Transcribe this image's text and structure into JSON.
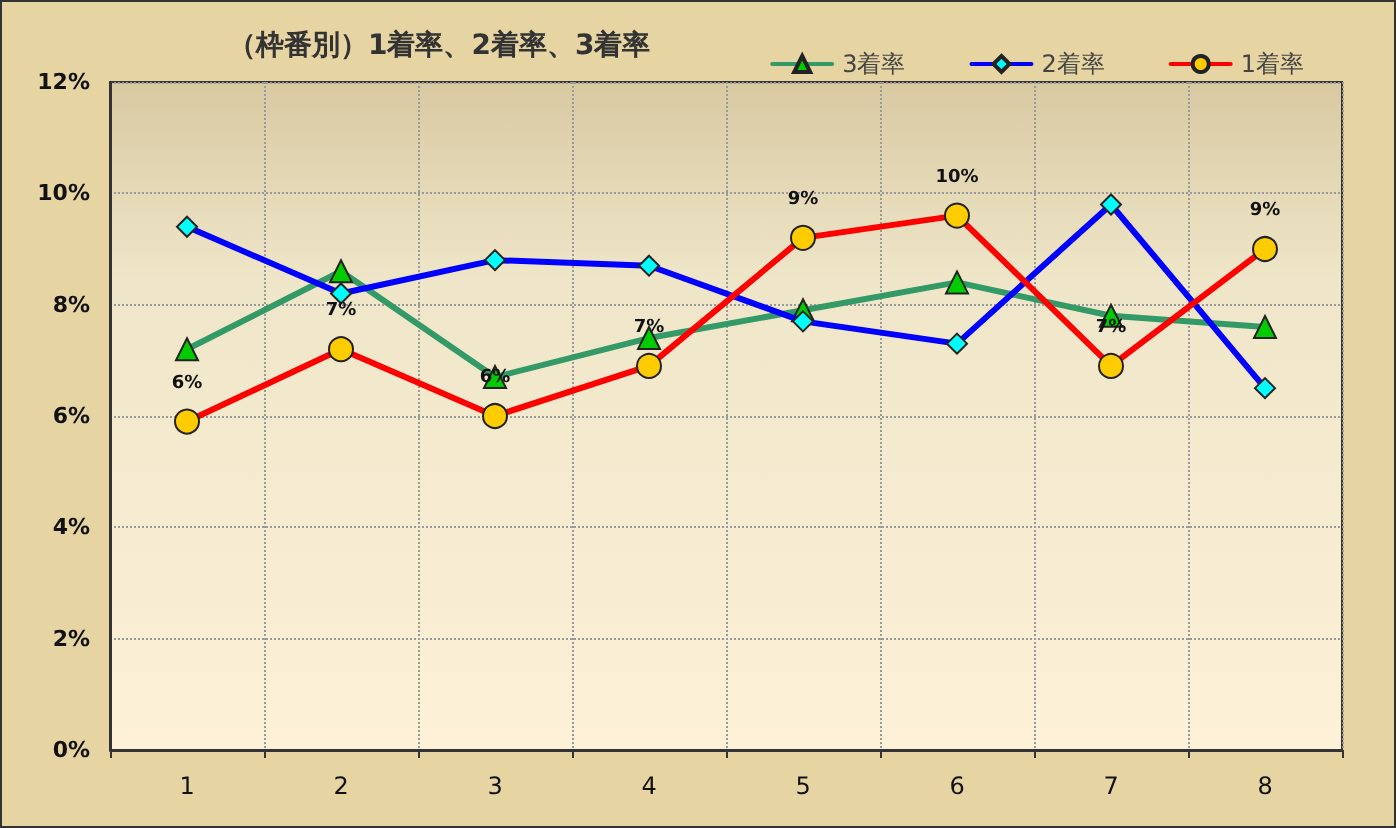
{
  "chart_data": {
    "type": "line",
    "title": "（枠番別）1着率、2着率、3着率",
    "categories": [
      "1",
      "2",
      "3",
      "4",
      "5",
      "6",
      "7",
      "8"
    ],
    "series": [
      {
        "name": "3着率",
        "color": "#339966",
        "marker": "triangle",
        "values": [
          7.2,
          8.6,
          6.7,
          7.4,
          7.9,
          8.4,
          7.8,
          7.6
        ]
      },
      {
        "name": "2着率",
        "color": "#0000ff",
        "marker": "diamond",
        "values": [
          9.4,
          8.2,
          8.8,
          8.7,
          7.7,
          7.3,
          9.8,
          6.5
        ]
      },
      {
        "name": "1着率",
        "color": "#ff0000",
        "marker": "circle",
        "values": [
          5.9,
          7.2,
          6.0,
          6.9,
          9.2,
          9.6,
          6.9,
          9.0
        ],
        "value_labels": [
          "6%",
          "7%",
          "6%",
          "7%",
          "9%",
          "10%",
          "7%",
          "9%"
        ]
      }
    ],
    "ylim": [
      0,
      12
    ],
    "yticks": [
      {
        "value": 0,
        "label": "0%"
      },
      {
        "value": 2,
        "label": "2%"
      },
      {
        "value": 4,
        "label": "4%"
      },
      {
        "value": 6,
        "label": "6%"
      },
      {
        "value": 8,
        "label": "8%"
      },
      {
        "value": 10,
        "label": "10%"
      },
      {
        "value": 12,
        "label": "12%"
      }
    ],
    "grid": true,
    "legend": "top right"
  }
}
